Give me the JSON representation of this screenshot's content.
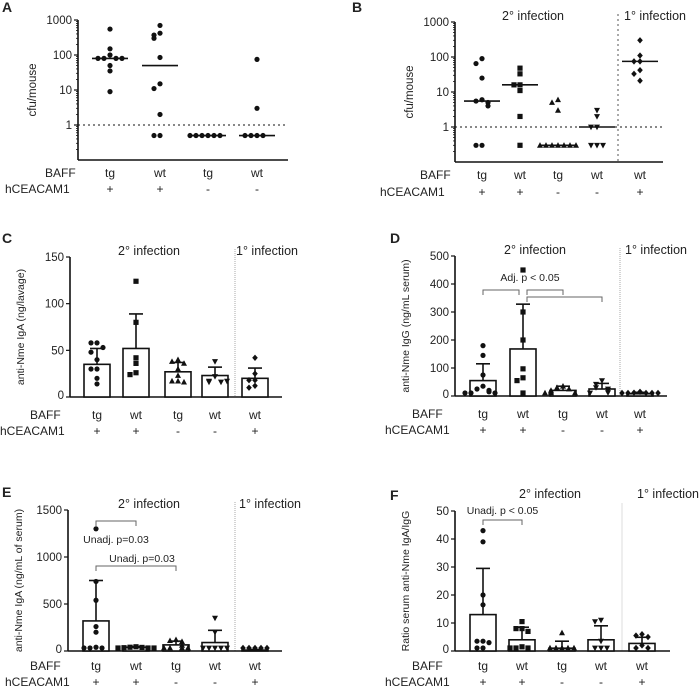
{
  "chart_data": [
    {
      "panel": "A",
      "type": "scatter",
      "ylabel": "cfu/mouse",
      "yscale": "log",
      "yticks": [
        "1000",
        "100",
        "10",
        "1"
      ],
      "threshold": 1,
      "row_labels": {
        "baff": "BAFF",
        "hceacam1": "hCEACAM1"
      },
      "headers": [],
      "summary": "median",
      "groups": [
        {
          "baff": "tg",
          "hceacam1": "+",
          "marker": "circle",
          "median": 80,
          "values": [
            550,
            150,
            100,
            80,
            80,
            80,
            80,
            50,
            35,
            9
          ]
        },
        {
          "baff": "wt",
          "hceacam1": "+",
          "marker": "circle",
          "median": 50,
          "values": [
            700,
            420,
            370,
            300,
            85,
            15,
            11,
            2,
            0.5,
            0.5
          ]
        },
        {
          "baff": "tg",
          "hceacam1": "-",
          "marker": "circle",
          "median": 0.5,
          "values": [
            0.5,
            0.5,
            0.5,
            0.5,
            0.5,
            0.5
          ]
        },
        {
          "baff": "wt",
          "hceacam1": "-",
          "marker": "circle",
          "median": 0.5,
          "values": [
            75,
            3,
            0.5,
            0.5,
            0.5,
            0.5
          ]
        }
      ],
      "annotations": []
    },
    {
      "panel": "B",
      "type": "scatter",
      "ylabel": "cfu/mouse",
      "yscale": "log",
      "yticks": [
        "1000",
        "100",
        "10",
        "1"
      ],
      "threshold": 1,
      "row_labels": {
        "baff": "BAFF",
        "hceacam1": "hCEACAM1"
      },
      "headers": [
        "2° infection",
        "1° infection"
      ],
      "summary": "median",
      "groups": [
        {
          "baff": "tg",
          "hceacam1": "+",
          "marker": "circle",
          "median": 5.5,
          "values": [
            90,
            65,
            25,
            6,
            5.5,
            5,
            4,
            0.3,
            0.3
          ]
        },
        {
          "baff": "wt",
          "hceacam1": "+",
          "marker": "square",
          "median": 16,
          "values": [
            48,
            33,
            16,
            16,
            11,
            2,
            0.3
          ]
        },
        {
          "baff": "tg",
          "hceacam1": "-",
          "marker": "triangle",
          "median": 0.3,
          "values": [
            6,
            5,
            3,
            0.3,
            0.3,
            0.3,
            0.3,
            0.3,
            0.3,
            0.3
          ]
        },
        {
          "baff": "wt",
          "hceacam1": "-",
          "marker": "triangle-down",
          "median": 1,
          "values": [
            3,
            2,
            1,
            1,
            0.3,
            0.3,
            0.3
          ]
        },
        {
          "baff": "wt",
          "hceacam1": "+",
          "marker": "diamond",
          "median": 75,
          "values": [
            300,
            110,
            75,
            75,
            42,
            33,
            21
          ]
        }
      ],
      "annotations": []
    },
    {
      "panel": "C",
      "type": "bar",
      "ylabel": "anti-Nme IgA (ng/lavage)",
      "yscale": "linear",
      "ylim": [
        0,
        150
      ],
      "yticks": [
        0,
        50,
        100,
        150
      ],
      "row_labels": {
        "baff": "BAFF",
        "hceacam1": "hCEACAM1"
      },
      "headers": [
        "2° infection",
        "1° infection"
      ],
      "summary": "mean_sd",
      "groups": [
        {
          "baff": "tg",
          "hceacam1": "+",
          "marker": "circle",
          "mean": 35,
          "sd": 17,
          "values": [
            58,
            58,
            53,
            48,
            40,
            30,
            30,
            20,
            14
          ]
        },
        {
          "baff": "wt",
          "hceacam1": "+",
          "marker": "square",
          "mean": 52,
          "sd": 37,
          "values": [
            124,
            80,
            42,
            36,
            26,
            24
          ]
        },
        {
          "baff": "tg",
          "hceacam1": "-",
          "marker": "triangle",
          "mean": 27,
          "sd": 10,
          "values": [
            40,
            38,
            36,
            30,
            23,
            17,
            17,
            16
          ]
        },
        {
          "baff": "wt",
          "hceacam1": "-",
          "marker": "triangle-down",
          "mean": 23,
          "sd": 9,
          "values": [
            38,
            22,
            17,
            16,
            16,
            17
          ]
        },
        {
          "baff": "wt",
          "hceacam1": "+",
          "marker": "diamond",
          "mean": 20,
          "sd": 11,
          "values": [
            42,
            25,
            18,
            18,
            12,
            10
          ]
        }
      ],
      "annotations": []
    },
    {
      "panel": "D",
      "type": "bar",
      "ylabel": "anti-Nme IgG (ng/mL serum)",
      "yscale": "linear",
      "ylim": [
        0,
        500
      ],
      "yticks": [
        0,
        100,
        200,
        300,
        400,
        500
      ],
      "row_labels": {
        "baff": "BAFF",
        "hceacam1": "hCEACAM1"
      },
      "headers": [
        "2° infection",
        "1° infection"
      ],
      "summary": "mean_sd",
      "groups": [
        {
          "baff": "tg",
          "hceacam1": "+",
          "marker": "circle",
          "mean": 55,
          "sd": 60,
          "values": [
            180,
            145,
            75,
            35,
            25,
            20,
            15,
            10,
            8,
            10
          ]
        },
        {
          "baff": "wt",
          "hceacam1": "+",
          "marker": "square",
          "mean": 168,
          "sd": 160,
          "values": [
            450,
            300,
            200,
            97,
            65,
            55,
            5
          ]
        },
        {
          "baff": "tg",
          "hceacam1": "-",
          "marker": "triangle",
          "mean": 20,
          "sd": 15,
          "values": [
            35,
            30,
            25,
            20,
            15,
            10,
            10,
            8
          ]
        },
        {
          "baff": "wt",
          "hceacam1": "-",
          "marker": "triangle-down",
          "mean": 25,
          "sd": 20,
          "values": [
            55,
            42,
            30,
            25,
            20,
            12,
            8
          ]
        },
        {
          "baff": "wt",
          "hceacam1": "+",
          "marker": "diamond",
          "mean": 8,
          "sd": 5,
          "values": [
            15,
            12,
            10,
            8,
            6,
            5,
            4
          ]
        }
      ],
      "annotations": [
        {
          "text": "Adj. p < 0.05",
          "comparisons": [
            [
              0,
              1
            ],
            [
              1,
              2
            ],
            [
              1,
              3
            ]
          ]
        }
      ]
    },
    {
      "panel": "E",
      "type": "bar",
      "ylabel": "anti-Nme IgA (ng/mL of serum)",
      "yscale": "linear",
      "ylim": [
        0,
        1500
      ],
      "yticks": [
        0,
        500,
        1000,
        1500
      ],
      "row_labels": {
        "baff": "BAFF",
        "hceacam1": "hCEACAM1"
      },
      "headers": [
        "2° infection",
        "1° infection"
      ],
      "summary": "mean_sd",
      "groups": [
        {
          "baff": "tg",
          "hceacam1": "+",
          "marker": "circle",
          "mean": 320,
          "sd": 430,
          "values": [
            1300,
            740,
            540,
            260,
            200,
            40,
            30,
            20,
            15
          ]
        },
        {
          "baff": "wt",
          "hceacam1": "+",
          "marker": "square",
          "mean": 40,
          "sd": 8,
          "values": [
            45,
            40,
            38,
            35,
            32,
            30,
            28
          ]
        },
        {
          "baff": "tg",
          "hceacam1": "-",
          "marker": "triangle",
          "mean": 65,
          "sd": 40,
          "values": [
            120,
            110,
            100,
            60,
            30,
            25,
            20,
            20
          ]
        },
        {
          "baff": "wt",
          "hceacam1": "-",
          "marker": "triangle-down",
          "mean": 90,
          "sd": 130,
          "values": [
            350,
            200,
            30,
            25,
            20,
            15,
            15
          ]
        },
        {
          "baff": "wt",
          "hceacam1": "+",
          "marker": "diamond",
          "mean": 10,
          "sd": 5,
          "values": [
            15,
            12,
            10,
            8,
            6
          ]
        }
      ],
      "annotations": [
        {
          "text": "Unadj. p=0.03",
          "comparisons": [
            [
              0,
              1
            ]
          ]
        },
        {
          "text": "Unadj. p=0.03",
          "comparisons": [
            [
              0,
              2
            ]
          ]
        }
      ]
    },
    {
      "panel": "F",
      "type": "bar",
      "ylabel": "Ratio serum anti-Nme IgA/IgG",
      "yscale": "linear",
      "ylim": [
        0,
        50
      ],
      "yticks": [
        0,
        10,
        20,
        30,
        40,
        50
      ],
      "row_labels": {
        "baff": "BAFF",
        "hceacam1": "hCEACAM1"
      },
      "headers": [
        "2° infection",
        "1° infection"
      ],
      "summary": "mean_sd",
      "groups": [
        {
          "baff": "tg",
          "hceacam1": "+",
          "marker": "circle",
          "mean": 13,
          "sd": 16.5,
          "values": [
            43,
            39,
            20,
            16.5,
            3.5,
            3.5,
            3,
            0.5,
            0.5
          ]
        },
        {
          "baff": "wt",
          "hceacam1": "+",
          "marker": "square",
          "mean": 4,
          "sd": 4.5,
          "values": [
            10.5,
            8,
            8,
            7,
            1.5,
            1,
            1,
            1
          ]
        },
        {
          "baff": "tg",
          "hceacam1": "-",
          "marker": "triangle",
          "mean": 1,
          "sd": 2.5,
          "values": [
            6.5,
            1,
            0.5,
            0.5,
            0.5,
            0.5
          ]
        },
        {
          "baff": "wt",
          "hceacam1": "-",
          "marker": "triangle-down",
          "mean": 4,
          "sd": 5,
          "values": [
            11,
            10.5,
            3.5,
            1,
            0.5,
            0.5
          ]
        },
        {
          "baff": "wt",
          "hceacam1": "+",
          "marker": "diamond",
          "mean": 2.7,
          "sd": 2.2,
          "values": [
            6,
            5.5,
            5,
            2,
            1,
            0.5
          ]
        }
      ],
      "annotations": [
        {
          "text": "Unadj. p < 0.05",
          "comparisons": [
            [
              0,
              1
            ]
          ]
        }
      ]
    }
  ]
}
